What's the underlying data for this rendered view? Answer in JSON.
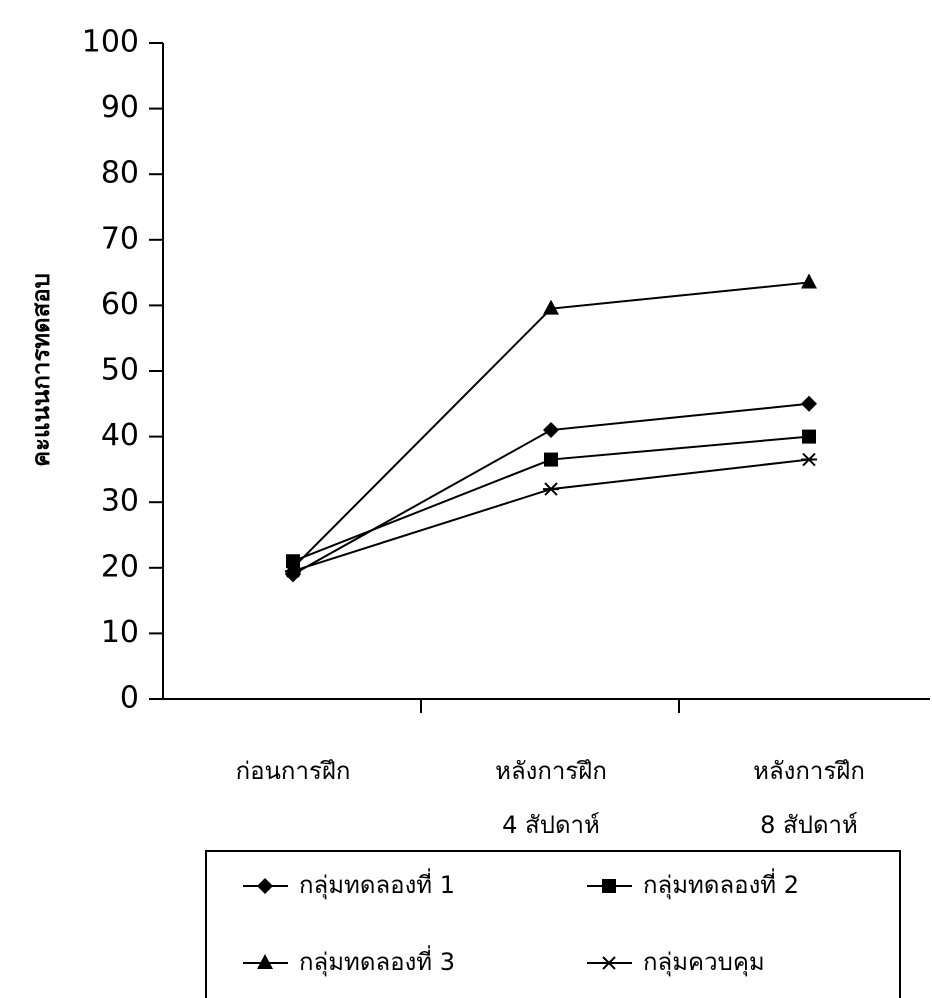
{
  "chart_data": {
    "type": "line",
    "y_label": "คะแนนการทดสอบ",
    "categories": [
      [
        "ก่อนการฝึก"
      ],
      [
        "หลังการฝึก",
        "4 สัปดาห์"
      ],
      [
        "หลังการฝึก",
        "8 สัปดาห์"
      ]
    ],
    "series": [
      {
        "name": "กลุ่มทดลองที่ 1",
        "color": "#000000",
        "marker": "diamond",
        "values": [
          19,
          41,
          45
        ]
      },
      {
        "name": "กลุ่มทดลองที่ 2",
        "color": "#000000",
        "marker": "square",
        "values": [
          21,
          36.5,
          40
        ]
      },
      {
        "name": "กลุ่มทดลองที่ 3",
        "color": "#000000",
        "marker": "triangle",
        "values": [
          20,
          59.5,
          63.5
        ]
      },
      {
        "name": "กลุ่มควบคุม",
        "color": "#000000",
        "marker": "star",
        "values": [
          19.5,
          32,
          36.5
        ]
      }
    ],
    "ylim": [
      0,
      100
    ],
    "yticks": [
      0,
      10,
      20,
      30,
      40,
      50,
      60,
      70,
      80,
      90,
      100
    ],
    "grid": false,
    "legend": "bottom"
  }
}
